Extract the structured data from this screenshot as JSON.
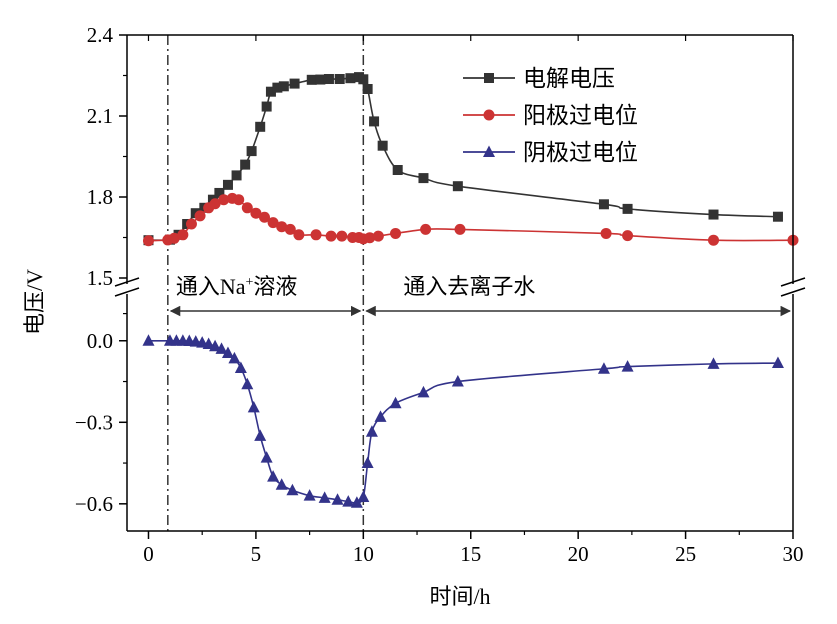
{
  "chart_data": {
    "type": "line",
    "title": "",
    "xlabel": "时间/h",
    "ylabel": "电压/V",
    "xlim": [
      -1,
      30
    ],
    "xticks": [
      0,
      5,
      10,
      15,
      20,
      25,
      30
    ],
    "xtick_labels": [
      "0",
      "5",
      "10",
      "15",
      "20",
      "25",
      "30"
    ],
    "upper_panel": {
      "ylim": [
        1.5,
        2.4
      ],
      "yticks": [
        1.5,
        1.8,
        2.1,
        2.4
      ],
      "ytick_labels": [
        "1.5",
        "1.8",
        "2.1",
        "2.4"
      ]
    },
    "lower_panel": {
      "ylim": [
        -0.7,
        0.15
      ],
      "yticks": [
        0.0,
        -0.3,
        -0.6
      ],
      "ytick_labels": [
        "0.0",
        "−0.3",
        "−0.6"
      ]
    },
    "axis_break": true,
    "grid": false,
    "legend_position": "top-right",
    "vlines": [
      0.9,
      10.0
    ],
    "annotations": [
      {
        "text": "通入Na",
        "sup": "+",
        "text_after": "溶液",
        "x_start": 0.9,
        "x_end": 10.0
      },
      {
        "text": "通入去离子水",
        "sup": "",
        "text_after": "",
        "x_start": 10.0,
        "x_end": 30.0
      }
    ],
    "series": [
      {
        "name": "电解电压",
        "color": "#333333",
        "marker": "square",
        "panel": "upper",
        "x": [
          0,
          1.0,
          1.4,
          1.8,
          2.2,
          2.6,
          3.0,
          3.3,
          3.7,
          4.1,
          4.5,
          4.8,
          5.2,
          5.5,
          5.7,
          6.0,
          6.3,
          6.8,
          7.6,
          8.0,
          8.4,
          8.9,
          9.4,
          9.8,
          10.0,
          10.2,
          10.5,
          10.9,
          11.6,
          12.8,
          14.4,
          21.2,
          22.3,
          26.3,
          29.3
        ],
        "y": [
          1.64,
          1.642,
          1.66,
          1.7,
          1.74,
          1.76,
          1.79,
          1.815,
          1.845,
          1.88,
          1.92,
          1.97,
          2.06,
          2.135,
          2.19,
          2.205,
          2.21,
          2.22,
          2.234,
          2.235,
          2.237,
          2.237,
          2.24,
          2.244,
          2.236,
          2.2,
          2.08,
          1.99,
          1.9,
          1.87,
          1.84,
          1.773,
          1.756,
          1.735,
          1.727
        ]
      },
      {
        "name": "阳极过电位",
        "color": "#cc3333",
        "marker": "circle",
        "panel": "upper",
        "x": [
          0,
          0.9,
          1.2,
          1.6,
          2.0,
          2.4,
          2.8,
          3.1,
          3.5,
          3.9,
          4.2,
          4.6,
          5.0,
          5.4,
          5.8,
          6.2,
          6.6,
          7.0,
          7.8,
          8.5,
          9.0,
          9.5,
          9.8,
          10.0,
          10.3,
          10.7,
          11.5,
          12.9,
          14.5,
          21.3,
          22.3,
          26.3,
          30.0
        ],
        "y": [
          1.638,
          1.641,
          1.647,
          1.66,
          1.7,
          1.73,
          1.76,
          1.775,
          1.79,
          1.795,
          1.79,
          1.76,
          1.74,
          1.725,
          1.705,
          1.69,
          1.68,
          1.66,
          1.66,
          1.655,
          1.655,
          1.65,
          1.65,
          1.645,
          1.649,
          1.655,
          1.665,
          1.68,
          1.68,
          1.665,
          1.657,
          1.64,
          1.64
        ]
      },
      {
        "name": "阴极过电位",
        "color": "#33338a",
        "marker": "triangle",
        "panel": "lower",
        "x": [
          0,
          1.0,
          1.3,
          1.6,
          1.9,
          2.2,
          2.5,
          2.8,
          3.1,
          3.4,
          3.7,
          4.0,
          4.3,
          4.6,
          4.9,
          5.2,
          5.5,
          5.8,
          6.2,
          6.7,
          7.5,
          8.2,
          8.8,
          9.3,
          9.7,
          10.0,
          10.2,
          10.4,
          10.8,
          11.5,
          12.8,
          14.4,
          21.2,
          22.3,
          26.3,
          29.3
        ],
        "y": [
          0.0,
          0.0,
          0.0,
          0.0,
          -0.001,
          -0.003,
          -0.007,
          -0.012,
          -0.02,
          -0.03,
          -0.045,
          -0.065,
          -0.1,
          -0.16,
          -0.245,
          -0.35,
          -0.43,
          -0.5,
          -0.53,
          -0.55,
          -0.57,
          -0.578,
          -0.585,
          -0.592,
          -0.596,
          -0.575,
          -0.45,
          -0.335,
          -0.28,
          -0.23,
          -0.19,
          -0.15,
          -0.103,
          -0.095,
          -0.085,
          -0.082
        ]
      }
    ]
  }
}
